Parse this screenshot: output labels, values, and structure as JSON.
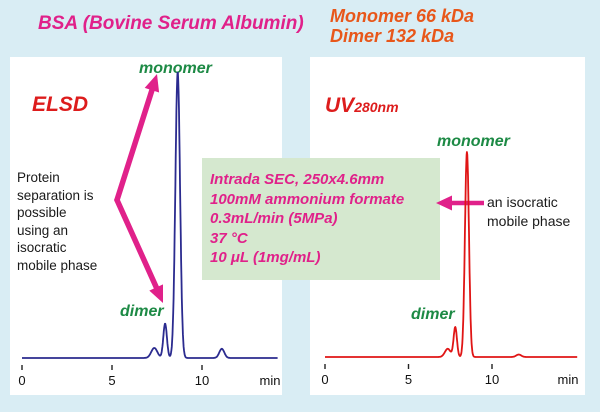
{
  "colors": {
    "page_bg": "#d9edf4",
    "panel_bg": "#ffffff",
    "magenta": "#e0218a",
    "orange": "#e8571a",
    "red": "#dd1c1c",
    "navy_trace": "#2b2b8f",
    "red_trace": "#e01515",
    "green_label": "#1d8a45",
    "method_box_bg": "#d5e8cf",
    "black_text": "#1a1a1a"
  },
  "header": {
    "title": "BSA (Bovine Serum Albumin)",
    "mass_line1": "Monomer 66 kDa",
    "mass_line2": "Dimer 132 kDa"
  },
  "left_panel": {
    "detector": "ELSD",
    "monomer_label": "monomer",
    "dimer_label": "dimer",
    "note": "Protein\nseparation is\npossible\nusing an\nisocratic\nmobile phase"
  },
  "right_panel": {
    "detector": "UV",
    "detector_sub": "280nm",
    "monomer_label": "monomer",
    "dimer_label": "dimer",
    "note": "an isocratic\nmobile phase"
  },
  "method_box": {
    "lines": [
      "Intrada SEC, 250x4.6mm",
      "100mM ammonium formate",
      "0.3mL/min (5MPa)",
      "37 °C",
      "10 μL (1mg/mL)"
    ]
  },
  "chart_data": [
    {
      "type": "line",
      "panel": "left",
      "detector": "ELSD",
      "line_color": "#2b2b8f",
      "xlabel": "min",
      "x_ticks": [
        "0",
        "5",
        "10"
      ],
      "x_tick_values": [
        0,
        5,
        10
      ],
      "xlim": [
        0,
        14.2
      ],
      "ylim": [
        0,
        1.05
      ],
      "grid": false,
      "peaks": [
        {
          "name": "aggregate-shoulder",
          "center_min": 7.35,
          "height": 0.035,
          "sigma_min": 0.17
        },
        {
          "name": "dimer",
          "center_min": 7.95,
          "height": 0.12,
          "sigma_min": 0.1
        },
        {
          "name": "monomer",
          "center_min": 8.65,
          "height": 1.0,
          "sigma_min": 0.13
        },
        {
          "name": "late-minor-peak",
          "center_min": 11.1,
          "height": 0.032,
          "sigma_min": 0.14
        }
      ]
    },
    {
      "type": "line",
      "panel": "right",
      "detector": "UV280nm",
      "line_color": "#e01515",
      "xlabel": "min",
      "x_ticks": [
        "0",
        "5",
        "10"
      ],
      "x_tick_values": [
        0,
        5,
        10
      ],
      "xlim": [
        0,
        15.1
      ],
      "ylim": [
        0,
        1.05
      ],
      "grid": false,
      "peaks": [
        {
          "name": "aggregate-shoulder",
          "center_min": 7.35,
          "height": 0.04,
          "sigma_min": 0.17
        },
        {
          "name": "dimer",
          "center_min": 7.8,
          "height": 0.145,
          "sigma_min": 0.1
        },
        {
          "name": "monomer",
          "center_min": 8.5,
          "height": 1.0,
          "sigma_min": 0.12
        },
        {
          "name": "late-minor-peak",
          "center_min": 11.6,
          "height": 0.012,
          "sigma_min": 0.15
        }
      ]
    }
  ]
}
